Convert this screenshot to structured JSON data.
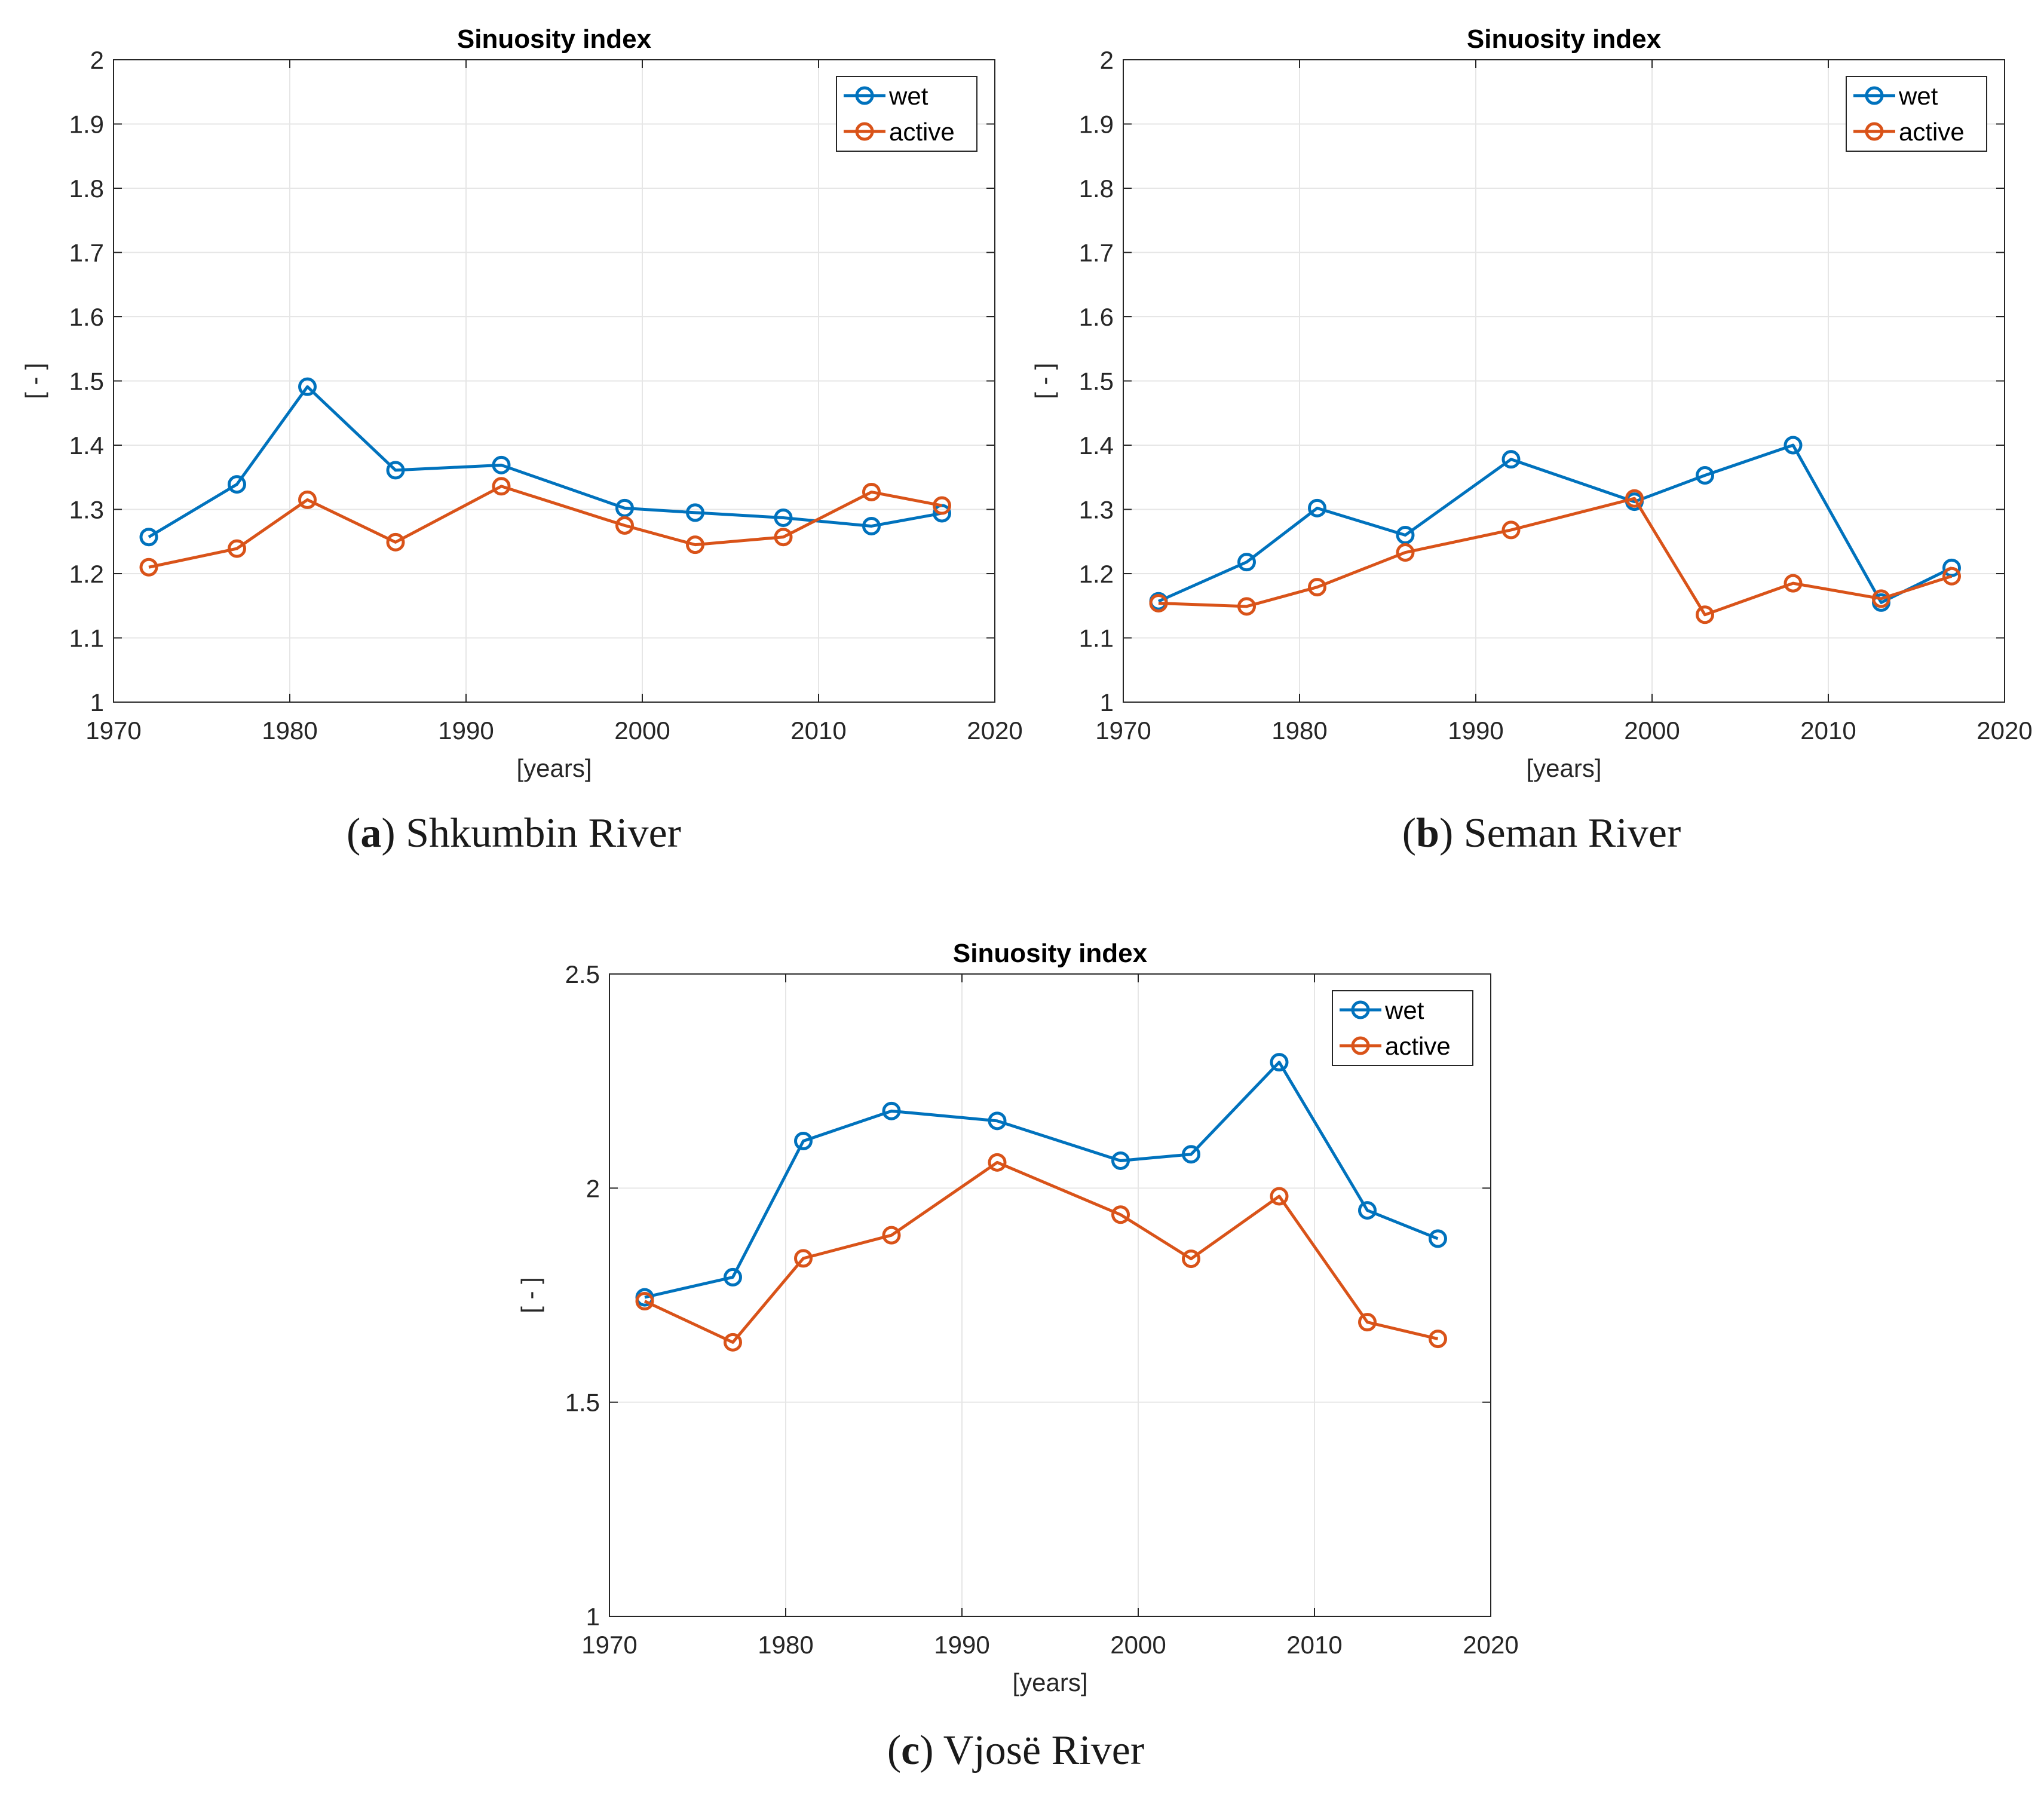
{
  "colors": {
    "wet": "#0072BD",
    "active": "#D95319",
    "grid": "#e6e6e6",
    "axis": "#262626"
  },
  "panels": [
    {
      "caption": {
        "letter": "a",
        "text": "Shkumbin River"
      },
      "chart_data": {
        "type": "line",
        "title": "Sinuosity index",
        "xlabel": "[years]",
        "ylabel": "[ - ]",
        "xlim": [
          1970,
          2020
        ],
        "ylim": [
          1,
          2
        ],
        "xticks": [
          1970,
          1980,
          1990,
          2000,
          2010,
          2020
        ],
        "yticks": [
          1,
          1.1,
          1.2,
          1.3,
          1.4,
          1.5,
          1.6,
          1.7,
          1.8,
          1.9,
          2
        ],
        "ytick_labels": [
          "1",
          "1.1",
          "1.2",
          "1.3",
          "1.4",
          "1.5",
          "1.6",
          "1.7",
          "1.8",
          "1.9",
          "2"
        ],
        "grid": true,
        "legend_position": "top-right",
        "x": [
          1972,
          1977,
          1981,
          1986,
          1992,
          1999,
          2003,
          2008,
          2013,
          2017
        ],
        "series": [
          {
            "name": "wet",
            "color_key": "wet",
            "values": [
              1.257,
              1.339,
              1.491,
              1.361,
              1.369,
              1.302,
              1.295,
              1.287,
              1.274,
              1.294
            ]
          },
          {
            "name": "active",
            "color_key": "active",
            "values": [
              1.21,
              1.239,
              1.315,
              1.249,
              1.336,
              1.275,
              1.245,
              1.257,
              1.327,
              1.306
            ]
          }
        ]
      }
    },
    {
      "caption": {
        "letter": "b",
        "text": "Seman River"
      },
      "chart_data": {
        "type": "line",
        "title": "Sinuosity index",
        "xlabel": "[years]",
        "ylabel": "[ - ]",
        "xlim": [
          1970,
          2020
        ],
        "ylim": [
          1,
          2
        ],
        "xticks": [
          1970,
          1980,
          1990,
          2000,
          2010,
          2020
        ],
        "yticks": [
          1,
          1.1,
          1.2,
          1.3,
          1.4,
          1.5,
          1.6,
          1.7,
          1.8,
          1.9,
          2
        ],
        "ytick_labels": [
          "1",
          "1.1",
          "1.2",
          "1.3",
          "1.4",
          "1.5",
          "1.6",
          "1.7",
          "1.8",
          "1.9",
          "2"
        ],
        "grid": true,
        "legend_position": "top-right",
        "x": [
          1972,
          1977,
          1981,
          1986,
          1992,
          1999,
          2003,
          2008,
          2013,
          2017
        ],
        "series": [
          {
            "name": "wet",
            "color_key": "wet",
            "values": [
              1.157,
              1.218,
              1.302,
              1.26,
              1.378,
              1.312,
              1.353,
              1.4,
              1.155,
              1.209
            ]
          },
          {
            "name": "active",
            "color_key": "active",
            "values": [
              1.154,
              1.149,
              1.179,
              1.233,
              1.268,
              1.317,
              1.136,
              1.185,
              1.161,
              1.196
            ]
          }
        ]
      }
    },
    {
      "caption": {
        "letter": "c",
        "text": "Vjosë River"
      },
      "chart_data": {
        "type": "line",
        "title": "Sinuosity index",
        "xlabel": "[years]",
        "ylabel": "[ - ]",
        "xlim": [
          1970,
          2020
        ],
        "ylim": [
          1,
          2.5
        ],
        "xticks": [
          1970,
          1980,
          1990,
          2000,
          2010,
          2020
        ],
        "yticks": [
          1,
          1.5,
          2,
          2.5
        ],
        "ytick_labels": [
          "1",
          "1.5",
          "2",
          "2.5"
        ],
        "grid": true,
        "legend_position": "top-right",
        "x": [
          1972,
          1977,
          1981,
          1986,
          1992,
          1999,
          2003,
          2008,
          2013,
          2017
        ],
        "series": [
          {
            "name": "wet",
            "color_key": "wet",
            "values": [
              1.745,
              1.792,
              2.11,
              2.18,
              2.157,
              2.064,
              2.079,
              2.294,
              1.948,
              1.882
            ]
          },
          {
            "name": "active",
            "color_key": "active",
            "values": [
              1.736,
              1.64,
              1.836,
              1.89,
              2.06,
              1.938,
              1.835,
              1.981,
              1.687,
              1.648
            ]
          }
        ]
      }
    }
  ]
}
